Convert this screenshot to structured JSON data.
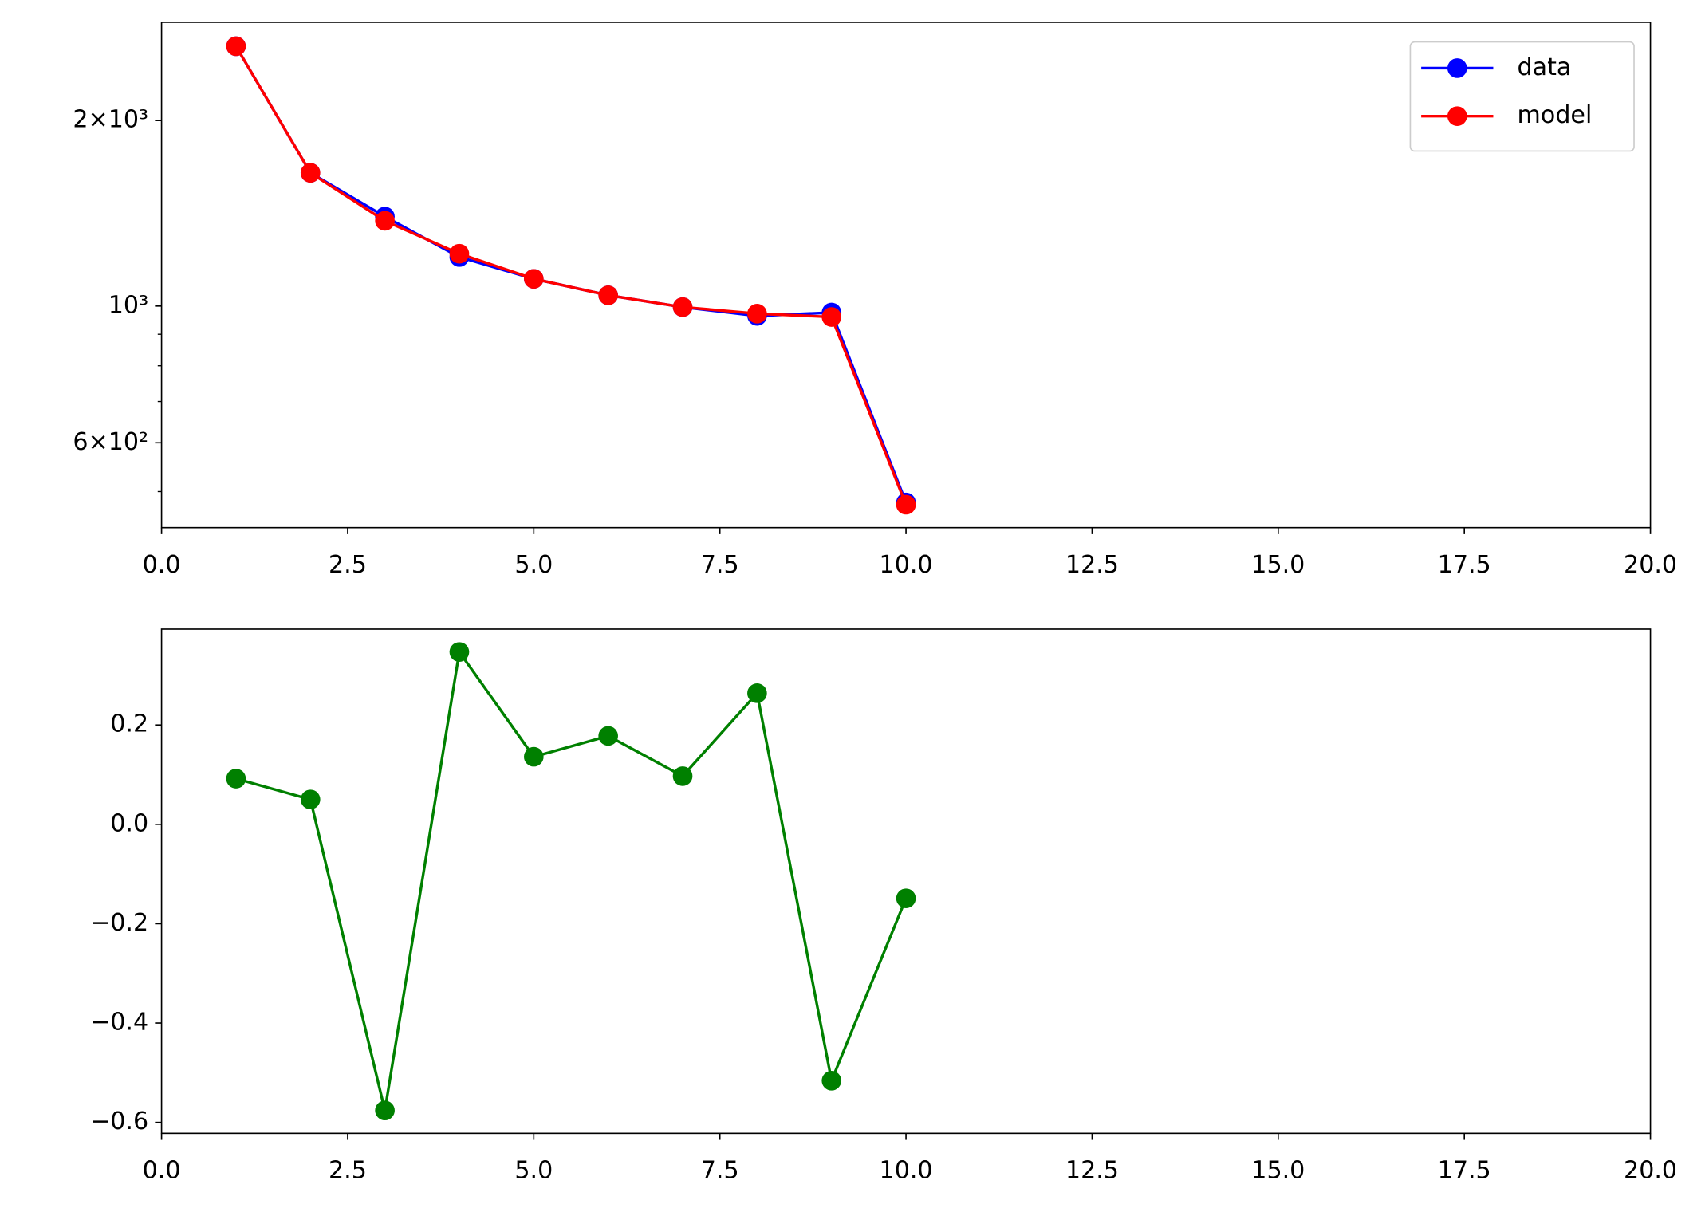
{
  "chart_data": [
    {
      "type": "line",
      "log_y": true,
      "legend": "upper right",
      "x": [
        1,
        2,
        3,
        4,
        5,
        6,
        7,
        8,
        9,
        10
      ],
      "series": [
        {
          "name": "data",
          "color": "#0000ff",
          "values": [
            2640,
            1645,
            1397,
            1201,
            1107,
            1041,
            996,
            964,
            976,
            480
          ]
        },
        {
          "name": "model",
          "color": "#ff0000",
          "values": [
            2640,
            1645,
            1375,
            1216,
            1107,
            1041,
            996,
            972,
            960,
            476
          ]
        }
      ],
      "xlim": [
        0,
        20
      ],
      "xticks": [
        {
          "value": 0,
          "label": "0.0"
        },
        {
          "value": 2.5,
          "label": "2.5"
        },
        {
          "value": 5,
          "label": "5.0"
        },
        {
          "value": 7.5,
          "label": "7.5"
        },
        {
          "value": 10,
          "label": "10.0"
        },
        {
          "value": 12.5,
          "label": "12.5"
        },
        {
          "value": 15,
          "label": "15.0"
        },
        {
          "value": 17.5,
          "label": "17.5"
        },
        {
          "value": 20,
          "label": "20.0"
        }
      ],
      "ylim": [
        437,
        2887
      ],
      "yticks": [
        {
          "value": 600,
          "label": "6×10²"
        },
        {
          "value": 1000,
          "label": "10³"
        },
        {
          "value": 2000,
          "label": "2×10³"
        }
      ],
      "minor_yticks": [
        500,
        700,
        800,
        900
      ]
    },
    {
      "type": "line",
      "log_y": false,
      "x": [
        1,
        2,
        3,
        4,
        5,
        6,
        7,
        8,
        9,
        10
      ],
      "series": [
        {
          "color": "#008000",
          "values": [
            0.092,
            0.05,
            -0.576,
            0.347,
            0.136,
            0.178,
            0.097,
            0.264,
            -0.516,
            -0.149
          ]
        }
      ],
      "xlim": [
        0,
        20
      ],
      "xticks": [
        {
          "value": 0,
          "label": "0.0"
        },
        {
          "value": 2.5,
          "label": "2.5"
        },
        {
          "value": 5,
          "label": "5.0"
        },
        {
          "value": 7.5,
          "label": "7.5"
        },
        {
          "value": 10,
          "label": "10.0"
        },
        {
          "value": 12.5,
          "label": "12.5"
        },
        {
          "value": 15,
          "label": "15.0"
        },
        {
          "value": 17.5,
          "label": "17.5"
        },
        {
          "value": 20,
          "label": "20.0"
        }
      ],
      "ylim": [
        -0.622,
        0.393
      ],
      "yticks": [
        {
          "value": -0.6,
          "label": "−0.6"
        },
        {
          "value": -0.4,
          "label": "−0.4"
        },
        {
          "value": -0.2,
          "label": "−0.2"
        },
        {
          "value": 0,
          "label": "0.0"
        },
        {
          "value": 0.2,
          "label": "0.2"
        }
      ]
    }
  ]
}
